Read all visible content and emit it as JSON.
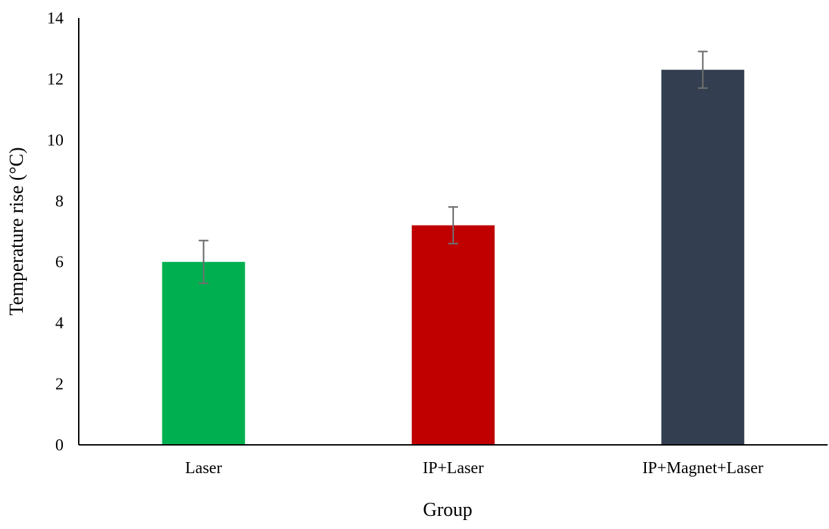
{
  "chart_data": {
    "type": "bar",
    "title": "",
    "xlabel": "Group",
    "ylabel": "Temperature rise (°C)",
    "ylim": [
      0,
      14
    ],
    "yticks": [
      0,
      2,
      4,
      6,
      8,
      10,
      12,
      14
    ],
    "categories": [
      "Laser",
      "IP+Laser",
      "IP+Magnet+Laser"
    ],
    "values": [
      6.0,
      7.2,
      12.3
    ],
    "error": [
      0.7,
      0.6,
      0.6
    ],
    "colors": [
      "#00b050",
      "#c00000",
      "#333f50"
    ],
    "error_bar_color": "#6e6e6e",
    "grid": false,
    "legend": "none"
  }
}
